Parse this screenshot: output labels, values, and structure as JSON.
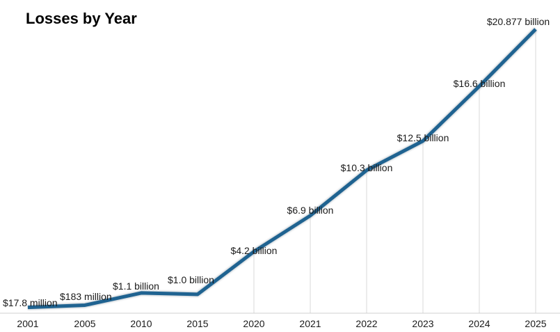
{
  "title": "Losses by Year",
  "chart_data": {
    "type": "line",
    "title": "Losses by Year",
    "categories": [
      "2001",
      "2005",
      "2010",
      "2015",
      "2020",
      "2021",
      "2022",
      "2023",
      "2024",
      "2025"
    ],
    "values": [
      0.0178,
      0.183,
      1.1,
      1.0,
      4.2,
      6.9,
      10.3,
      12.5,
      16.6,
      20.877
    ],
    "value_unit": "billion USD",
    "data_labels": [
      "$17.8 million",
      "$183 million",
      "$1.1 billion",
      "$1.0 billion",
      "$4.2 billion",
      "$6.9 billion",
      "$10.3 billion",
      "$12.5 billion",
      "$16.6 billion",
      "$20.877 billion"
    ],
    "xlabel": "",
    "ylabel": "",
    "ylim": [
      0,
      20.877
    ],
    "grid": "vertical drop lines only",
    "legend": "none",
    "line_color": "#1f6391"
  }
}
